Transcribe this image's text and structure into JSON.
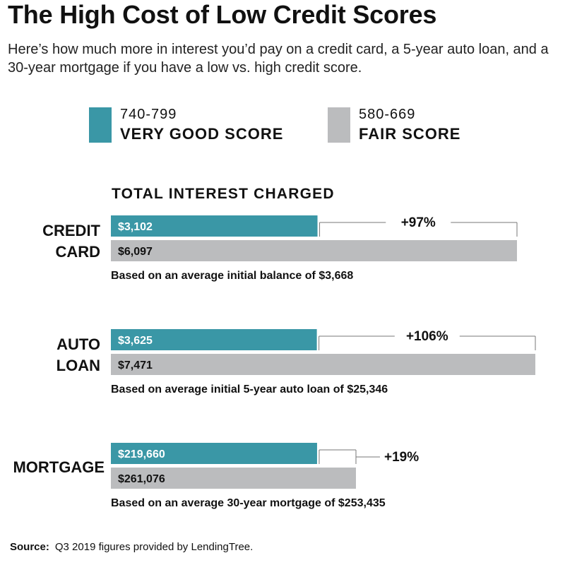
{
  "title": "The High Cost of Low Credit Scores",
  "subtitle": "Here’s how much more in interest you’d pay on a credit card, a 5-year auto loan, and a 30-year mortgage if you have a low vs. high credit score.",
  "legend": [
    {
      "range": "740-799",
      "name": "VERY GOOD SCORE",
      "color": "#3a97a6"
    },
    {
      "range": "580-669",
      "name": "FAIR SCORE",
      "color": "#bbbcbe"
    }
  ],
  "source_label": "Source:",
  "source_text": "Q3 2019 figures provided by LendingTree.",
  "chart_data": {
    "type": "bar",
    "orientation": "horizontal",
    "value_heading": "TOTAL INTEREST CHARGED",
    "series": [
      {
        "name": "VERY GOOD SCORE",
        "color": "#3a97a6"
      },
      {
        "name": "FAIR SCORE",
        "color": "#bbbcbe"
      }
    ],
    "groups": [
      {
        "category_lines": [
          "CREDIT",
          "CARD"
        ],
        "values": [
          3102,
          6097
        ],
        "labels": [
          "$3,102",
          "$6,097"
        ],
        "change": "+97%",
        "note": "Based on an average initial balance of $3,668"
      },
      {
        "category_lines": [
          "AUTO",
          "LOAN"
        ],
        "values": [
          3625,
          7471
        ],
        "labels": [
          "$3,625",
          "$7,471"
        ],
        "change": "+106%",
        "note": "Based on average initial 5-year auto loan of $25,346"
      },
      {
        "category_lines": [
          "MORTGAGE"
        ],
        "values": [
          219660,
          261076
        ],
        "labels": [
          "$219,660",
          "$261,076"
        ],
        "change": "+19%",
        "note": "Based on an average 30-year mortgage of $253,435"
      }
    ]
  }
}
